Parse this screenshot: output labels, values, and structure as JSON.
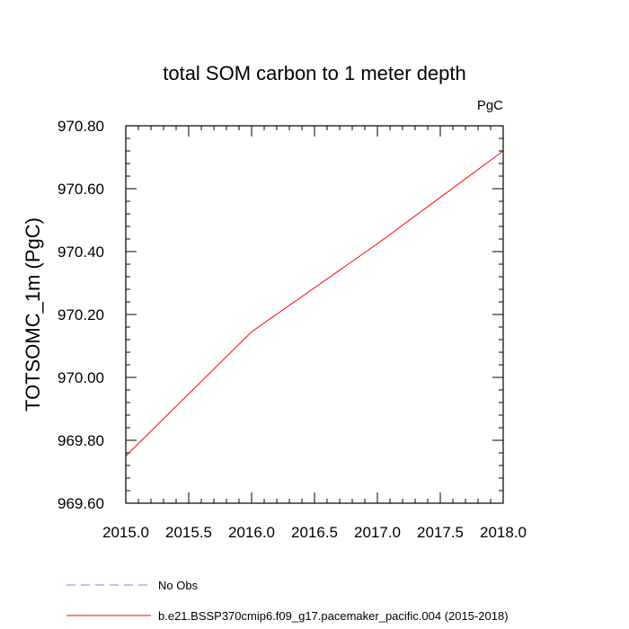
{
  "chart_data": {
    "type": "line",
    "title": "total SOM carbon to 1 meter depth",
    "units_label": "PgC",
    "ylabel": "TOTSOMC_1m  (PgC)",
    "xlabel": "",
    "xlim": [
      2015.0,
      2018.0
    ],
    "ylim": [
      969.6,
      970.8
    ],
    "x_ticks": [
      2015.0,
      2015.5,
      2016.0,
      2016.5,
      2017.0,
      2017.5,
      2018.0
    ],
    "x_tick_labels": [
      "2015.0",
      "2015.5",
      "2016.0",
      "2016.5",
      "2017.0",
      "2017.5",
      "2018.0"
    ],
    "y_ticks": [
      969.6,
      969.8,
      970.0,
      970.2,
      970.4,
      970.6,
      970.8
    ],
    "y_tick_labels": [
      "969.60",
      "969.80",
      "970.00",
      "970.20",
      "970.40",
      "970.60",
      "970.80"
    ],
    "grid": false,
    "legend_position": "bottom",
    "series": [
      {
        "name": "No Obs",
        "color": "#8080ff",
        "dash": "dashed",
        "x": [],
        "y": []
      },
      {
        "name": "b.e21.BSSP370cmip6.f09_g17.pacemaker_pacific.004 (2015-2018)",
        "color": "#ff0000",
        "dash": "solid",
        "x": [
          2015.0,
          2016.0,
          2017.0,
          2018.0
        ],
        "y": [
          969.75,
          970.145,
          970.425,
          970.72
        ]
      }
    ]
  }
}
